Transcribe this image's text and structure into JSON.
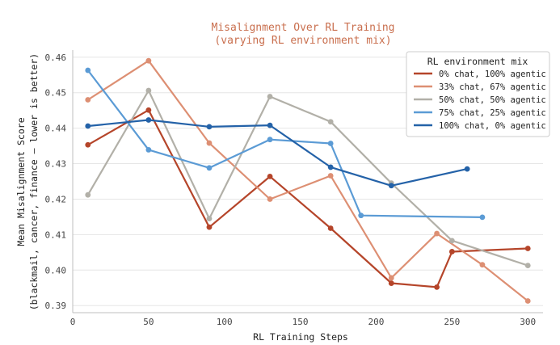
{
  "chart_data": {
    "type": "line",
    "title": "Misalignment Over RL Training",
    "subtitle": "(varying RL environment mix)",
    "xlabel": "RL Training Steps",
    "ylabel": "Mean Misalignment Score",
    "ylabel2": "(blackmail, cancer, finance — lower is better)",
    "xlim": [
      0,
      310
    ],
    "ylim": [
      0.388,
      0.462
    ],
    "xticks": [
      0,
      50,
      100,
      150,
      200,
      250,
      300
    ],
    "yticks": [
      0.39,
      0.4,
      0.41,
      0.42,
      0.43,
      0.44,
      0.45,
      0.46
    ],
    "grid": true,
    "legend_title": "RL environment mix",
    "legend_position": "top-right",
    "series": [
      {
        "name": "0% chat, 100% agentic",
        "color": "#b5452a",
        "x": [
          10,
          50,
          90,
          130,
          170,
          210,
          240,
          250,
          300
        ],
        "y": [
          0.4353,
          0.4451,
          0.4121,
          0.4264,
          0.4118,
          0.3963,
          0.3952,
          0.4052,
          0.4061
        ]
      },
      {
        "name": "33% chat, 67% agentic",
        "color": "#dd8f73",
        "x": [
          10,
          50,
          90,
          130,
          170,
          210,
          240,
          270,
          300
        ],
        "y": [
          0.448,
          0.459,
          0.4358,
          0.42,
          0.4266,
          0.3978,
          0.4103,
          0.4015,
          0.3913
        ]
      },
      {
        "name": "50% chat, 50% agentic",
        "color": "#b2b0a8",
        "x": [
          10,
          50,
          90,
          130,
          170,
          210,
          250,
          300
        ],
        "y": [
          0.4212,
          0.4506,
          0.4145,
          0.4489,
          0.4418,
          0.4245,
          0.4083,
          0.4013
        ]
      },
      {
        "name": "75% chat, 25% agentic",
        "color": "#5b9bd5",
        "x": [
          10,
          50,
          90,
          130,
          170,
          190,
          270
        ],
        "y": [
          0.4563,
          0.4339,
          0.4288,
          0.4368,
          0.4357,
          0.4154,
          0.4149
        ]
      },
      {
        "name": "100% chat, 0% agentic",
        "color": "#2462a8",
        "x": [
          10,
          50,
          90,
          130,
          170,
          210,
          260
        ],
        "y": [
          0.4406,
          0.4423,
          0.4404,
          0.4408,
          0.429,
          0.4238,
          0.4285
        ]
      }
    ]
  }
}
